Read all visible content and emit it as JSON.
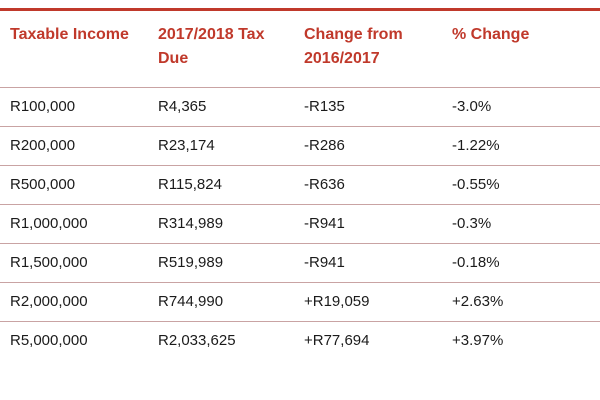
{
  "colors": {
    "header_text": "#c0392b",
    "rule": "#c0392b",
    "row_divider": "#c9a3a3",
    "body_text": "#1b1b1b"
  },
  "table": {
    "headers": [
      "Taxable Income",
      "2017/2018 Tax Due",
      "Change from 2016/2017",
      "% Change"
    ],
    "rows": [
      [
        "R100,000",
        "R4,365",
        "-R135",
        "-3.0%"
      ],
      [
        "R200,000",
        "R23,174",
        "-R286",
        "-1.22%"
      ],
      [
        "R500,000",
        "R115,824",
        "-R636",
        "-0.55%"
      ],
      [
        "R1,000,000",
        "R314,989",
        "-R941",
        "-0.3%"
      ],
      [
        "R1,500,000",
        "R519,989",
        "-R941",
        "-0.18%"
      ],
      [
        "R2,000,000",
        "R744,990",
        "+R19,059",
        "+2.63%"
      ],
      [
        "R5,000,000",
        "R2,033,625",
        "+R77,694",
        "+3.97%"
      ]
    ]
  }
}
